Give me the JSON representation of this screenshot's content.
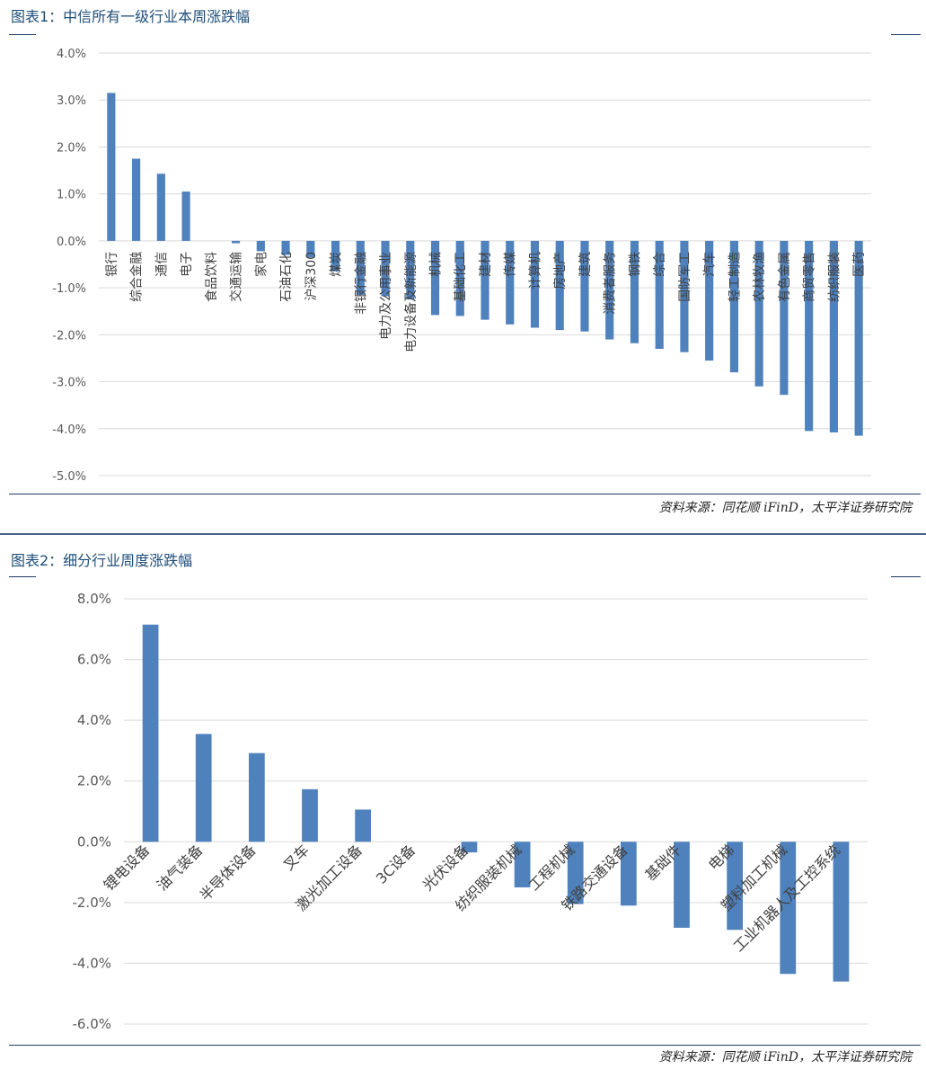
{
  "figure1": {
    "header": "图表1：中信所有一级行业本周涨跌幅",
    "source": "资料来源：同花顺 iFinD，太平洋证券研究院",
    "chart_data": {
      "type": "bar",
      "bar_color": "#4f81bd",
      "ylim": [
        -5,
        4
      ],
      "yticks": [
        4,
        3,
        2,
        1,
        0,
        -1,
        -2,
        -3,
        -4,
        -5
      ],
      "ytick_labels": [
        "4.0%",
        "3.0%",
        "2.0%",
        "1.0%",
        "0.0%",
        "-1.0%",
        "-2.0%",
        "-3.0%",
        "-4.0%",
        "-5.0%"
      ],
      "categories": [
        "银行",
        "综合金融",
        "通信",
        "电子",
        "食品饮料",
        "交通运输",
        "家电",
        "石油石化",
        "沪深300",
        "煤炭",
        "非银行金融",
        "电力及公用事业",
        "电力设备及新能源",
        "机械",
        "基础化工",
        "建材",
        "传媒",
        "计算机",
        "房地产",
        "建筑",
        "消费者服务",
        "钢铁",
        "综合",
        "国防军工",
        "汽车",
        "轻工制造",
        "农林牧渔",
        "有色金属",
        "商贸零售",
        "纺织服装",
        "医药"
      ],
      "values": [
        3.15,
        1.75,
        1.43,
        1.05,
        0.0,
        -0.05,
        -0.22,
        -0.3,
        -0.35,
        -0.65,
        -1.15,
        -1.18,
        -1.25,
        -1.58,
        -1.6,
        -1.68,
        -1.78,
        -1.85,
        -1.9,
        -1.93,
        -2.1,
        -2.18,
        -2.3,
        -2.37,
        -2.55,
        -2.8,
        -3.1,
        -3.28,
        -4.05,
        -4.08,
        -4.15
      ]
    }
  },
  "figure2": {
    "header": "图表2：细分行业周度涨跌幅",
    "source": "资料来源：同花顺 iFinD，太平洋证券研究院",
    "chart_data": {
      "type": "bar",
      "bar_color": "#4f81bd",
      "ylim": [
        -6,
        8
      ],
      "yticks": [
        8,
        6,
        4,
        2,
        0,
        -2,
        -4,
        -6
      ],
      "ytick_labels": [
        "8.0%",
        "6.0%",
        "4.0%",
        "2.0%",
        "0.0%",
        "-2.0%",
        "-4.0%",
        "-6.0%"
      ],
      "categories": [
        "锂电设备",
        "油气装备",
        "半导体设备",
        "叉车",
        "激光加工设备",
        "3C设备",
        "光伏设备",
        "纺织服装机械",
        "工程机械",
        "铁路交通设备",
        "基础件",
        "电梯",
        "塑料加工机械",
        "工业机器人及工控系统"
      ],
      "values": [
        7.15,
        3.55,
        2.92,
        1.73,
        1.06,
        0.0,
        -0.35,
        -1.5,
        -2.05,
        -2.1,
        -2.83,
        -2.9,
        -4.35,
        -4.6
      ]
    }
  }
}
